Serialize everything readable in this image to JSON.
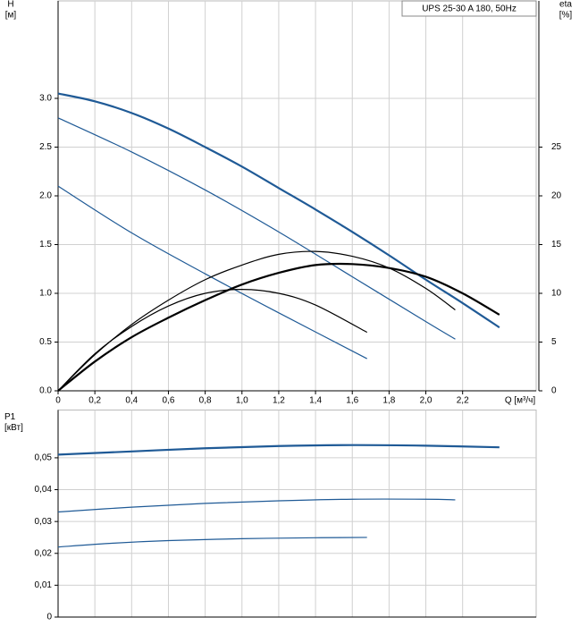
{
  "chart_data": [
    {
      "type": "line",
      "ylabel": [
        "H",
        "[м]"
      ],
      "y2label": [
        "eta",
        "[%]"
      ],
      "xlabel": "Q [м³/ч]",
      "annotation": "UPS 25-30 A 180, 50Hz",
      "xlim": [
        0,
        2.6
      ],
      "xticks": [
        0,
        {
          "value": 0.2,
          "label": "0,2"
        },
        {
          "value": 0.4,
          "label": "0,4"
        },
        {
          "value": 0.6,
          "label": "0,6"
        },
        {
          "value": 0.8,
          "label": "0,8"
        },
        {
          "value": 1.0,
          "label": "1,0"
        },
        {
          "value": 1.2,
          "label": "1,2"
        },
        {
          "value": 1.4,
          "label": "1,4"
        },
        {
          "value": 1.6,
          "label": "1,6"
        },
        {
          "value": 1.8,
          "label": "1,8"
        },
        {
          "value": 2.0,
          "label": "2,0"
        },
        {
          "value": 2.2,
          "label": "2,2"
        }
      ],
      "ylim": [
        0,
        4
      ],
      "yticks": [
        {
          "value": 0,
          "label": "0.0"
        },
        0.5,
        {
          "value": 1,
          "label": "1.0"
        },
        1.5,
        {
          "value": 2,
          "label": "2.0"
        },
        2.5,
        {
          "value": 3,
          "label": "3.0"
        }
      ],
      "y2lim": [
        0,
        40
      ],
      "y2ticks": [
        0,
        5,
        10,
        15,
        20,
        25
      ],
      "grid": true,
      "series": [
        {
          "color": "#1f5a96",
          "x": [
            0,
            0.2,
            0.4,
            0.6,
            0.8,
            1.0,
            1.2,
            1.4,
            1.6,
            1.8,
            2.0,
            2.2,
            2.4
          ],
          "values": [
            3.05,
            2.97,
            2.85,
            2.69,
            2.5,
            2.3,
            2.08,
            1.86,
            1.63,
            1.39,
            1.14,
            0.9,
            0.65
          ]
        },
        {
          "color": "#1f5a96",
          "x": [
            0,
            0.4,
            0.8,
            1.2,
            1.6,
            2.0,
            2.16
          ],
          "values": [
            2.8,
            2.45,
            2.06,
            1.63,
            1.17,
            0.71,
            0.53
          ]
        },
        {
          "color": "#1f5a96",
          "x": [
            0,
            0.4,
            0.8,
            1.2,
            1.68
          ],
          "values": [
            2.1,
            1.62,
            1.2,
            0.8,
            0.33
          ]
        },
        {
          "color": "#000000",
          "axis": "y2",
          "x": [
            0,
            0.2,
            0.4,
            0.6,
            0.8,
            1.0,
            1.2,
            1.4,
            1.6,
            1.8,
            2.0,
            2.2,
            2.4
          ],
          "values": [
            0,
            3.0,
            5.5,
            7.5,
            9.3,
            10.9,
            12.1,
            12.9,
            13.0,
            12.6,
            11.7,
            10.0,
            7.8
          ]
        },
        {
          "color": "#000000",
          "axis": "y2",
          "x": [
            0,
            0.2,
            0.4,
            0.6,
            0.8,
            1.0,
            1.2,
            1.4,
            1.6,
            1.8,
            2.0,
            2.16
          ],
          "values": [
            0,
            3.7,
            6.8,
            9.3,
            11.4,
            12.9,
            14.0,
            14.3,
            13.8,
            12.6,
            10.5,
            8.3
          ]
        },
        {
          "color": "#000000",
          "axis": "y2",
          "x": [
            0,
            0.2,
            0.4,
            0.6,
            0.8,
            1.0,
            1.2,
            1.4,
            1.68
          ],
          "values": [
            0,
            3.8,
            6.6,
            8.7,
            10.0,
            10.4,
            10.0,
            8.8,
            6.0
          ]
        }
      ]
    },
    {
      "type": "line",
      "ylabel": [
        "P1",
        "[кВт]"
      ],
      "xlim": [
        0,
        2.6
      ],
      "ylim": [
        0,
        0.065
      ],
      "yticks": [
        0,
        {
          "value": 0.01,
          "label": "0,01"
        },
        {
          "value": 0.02,
          "label": "0,02"
        },
        {
          "value": 0.03,
          "label": "0,03"
        },
        {
          "value": 0.04,
          "label": "0,04"
        },
        {
          "value": 0.05,
          "label": "0,05"
        }
      ],
      "grid": true,
      "series": [
        {
          "color": "#1f5a96",
          "x": [
            0,
            0.4,
            0.8,
            1.2,
            1.6,
            2.0,
            2.4
          ],
          "values": [
            0.051,
            0.052,
            0.053,
            0.0537,
            0.054,
            0.0538,
            0.0533
          ]
        },
        {
          "color": "#1f5a96",
          "x": [
            0,
            0.4,
            0.8,
            1.2,
            1.6,
            2.0,
            2.16
          ],
          "values": [
            0.033,
            0.0345,
            0.0357,
            0.0365,
            0.037,
            0.037,
            0.0368
          ]
        },
        {
          "color": "#1f5a96",
          "x": [
            0,
            0.3,
            0.6,
            1.0,
            1.4,
            1.68
          ],
          "values": [
            0.022,
            0.0232,
            0.024,
            0.0246,
            0.0249,
            0.025
          ]
        }
      ]
    }
  ]
}
